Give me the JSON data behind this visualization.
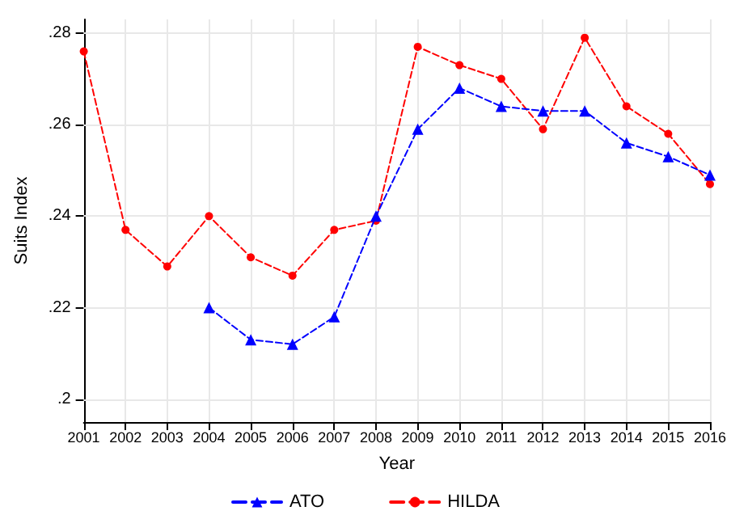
{
  "chart_data": {
    "type": "line",
    "xlabel": "Year",
    "ylabel": "Suits Index",
    "categories": [
      "2001",
      "2002",
      "2003",
      "2004",
      "2005",
      "2006",
      "2007",
      "2008",
      "2009",
      "2010",
      "2011",
      "2012",
      "2013",
      "2014",
      "2015",
      "2016"
    ],
    "series": [
      {
        "name": "ATO",
        "color": "#0000ff",
        "marker": "triangle",
        "values": [
          null,
          null,
          null,
          0.22,
          0.213,
          0.212,
          0.218,
          0.24,
          0.259,
          0.268,
          0.264,
          0.263,
          0.263,
          0.256,
          0.253,
          0.249
        ]
      },
      {
        "name": "HILDA",
        "color": "#ff0000",
        "marker": "circle",
        "values": [
          0.276,
          0.237,
          0.229,
          0.24,
          0.231,
          0.227,
          0.237,
          0.239,
          0.277,
          0.273,
          0.27,
          0.259,
          0.279,
          0.264,
          0.258,
          0.247
        ]
      }
    ],
    "ylim": [
      0.195,
      0.283
    ],
    "yticks": [
      {
        "value": 0.2,
        "label": ".2"
      },
      {
        "value": 0.22,
        "label": ".22"
      },
      {
        "value": 0.24,
        "label": ".24"
      },
      {
        "value": 0.26,
        "label": ".26"
      },
      {
        "value": 0.28,
        "label": ".28"
      }
    ],
    "grid": true,
    "legend": "bottom",
    "line_style": "dashed"
  }
}
